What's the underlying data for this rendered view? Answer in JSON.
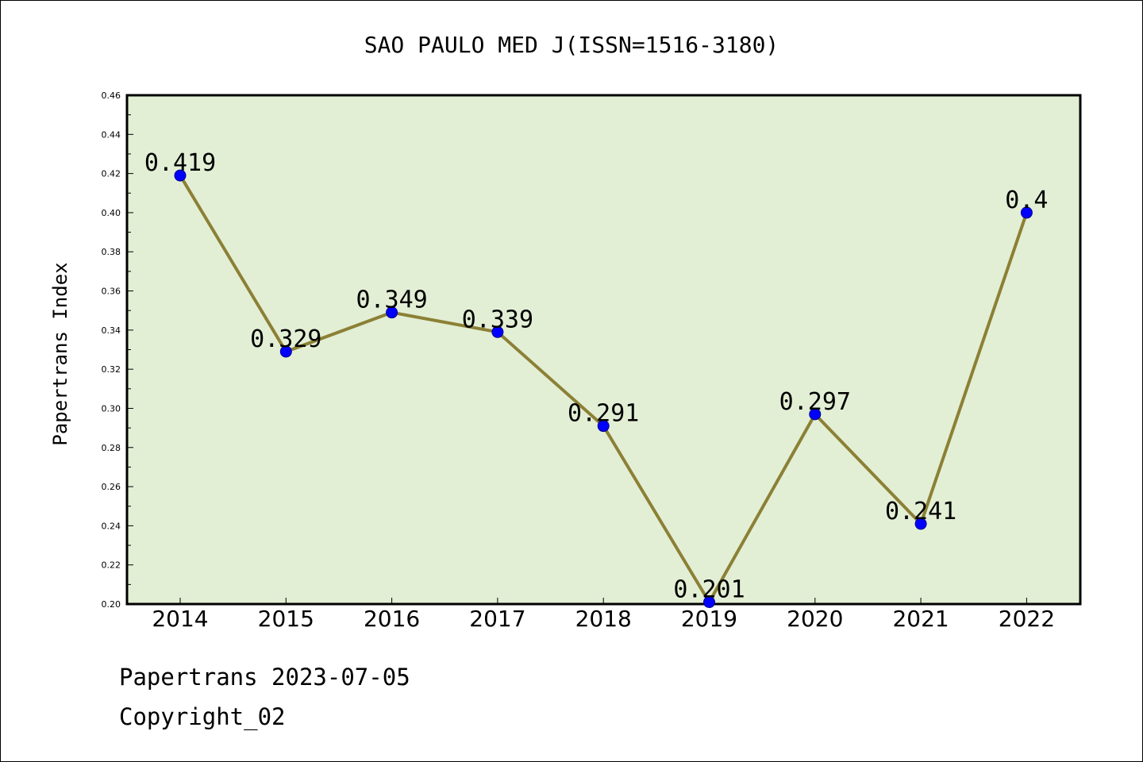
{
  "chart_data": {
    "type": "line",
    "title": "SAO PAULO MED J(ISSN=1516-3180)",
    "xlabel": "",
    "ylabel": "Papertrans Index",
    "categories": [
      "2014",
      "2015",
      "2016",
      "2017",
      "2018",
      "2019",
      "2020",
      "2021",
      "2022"
    ],
    "values": [
      0.419,
      0.329,
      0.349,
      0.339,
      0.291,
      0.201,
      0.297,
      0.241,
      0.4
    ],
    "data_labels": [
      "0.419",
      "0.329",
      "0.349",
      "0.339",
      "0.291",
      "0.201",
      "0.297",
      "0.241",
      "0.4"
    ],
    "ylim": [
      0.2,
      0.46
    ],
    "yticks": [
      "0.20",
      "0.22",
      "0.24",
      "0.26",
      "0.28",
      "0.30",
      "0.32",
      "0.34",
      "0.36",
      "0.38",
      "0.40",
      "0.42",
      "0.44",
      "0.46"
    ],
    "grid": false,
    "colors": {
      "plot_background": "#e2efd5",
      "line": "#8c8035",
      "marker": "#0000ff",
      "marker_edge": "#00008b"
    }
  },
  "footer": {
    "date_line": "Papertrans 2023-07-05",
    "copyright": "Copyright_02"
  }
}
